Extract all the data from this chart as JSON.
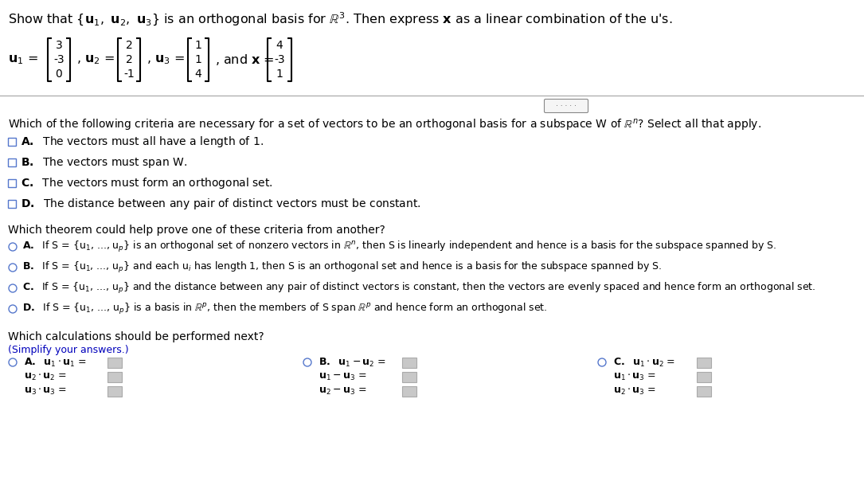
{
  "background_color": "#ffffff",
  "text_color": "#000000",
  "blue_color": "#0000bb",
  "checkbox_color": "#5577cc",
  "radio_color": "#5577cc",
  "fs_title": 11.5,
  "fs_body": 10.0,
  "fs_small": 9.0,
  "u1": [
    "3",
    "-3",
    "0"
  ],
  "u2": [
    "2",
    "2",
    "-1"
  ],
  "u3": [
    "1",
    "1",
    "4"
  ],
  "x": [
    "4",
    "-3",
    "1"
  ]
}
